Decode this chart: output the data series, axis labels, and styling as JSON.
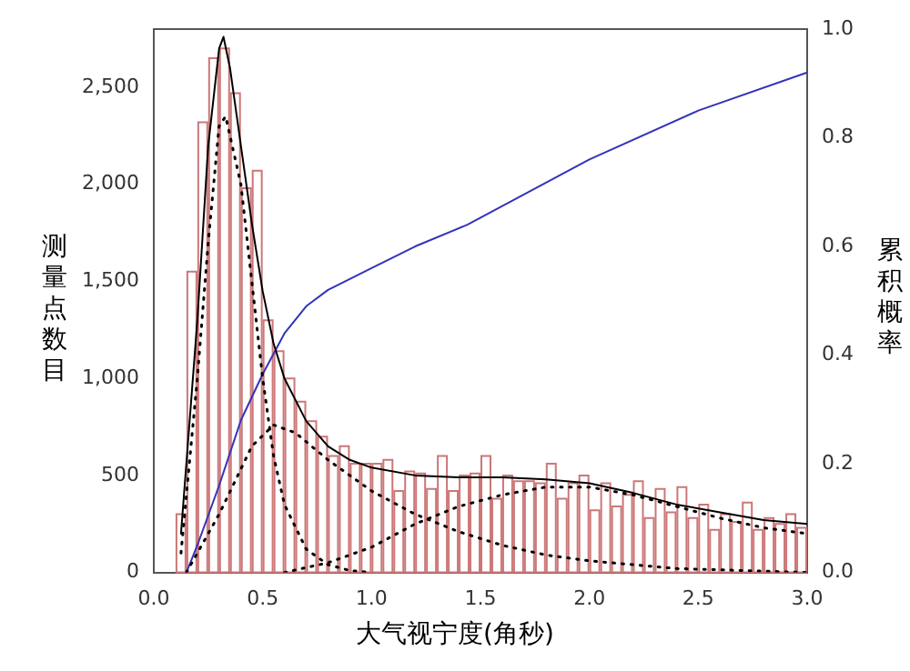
{
  "chart_data": {
    "type": "histogram",
    "xlabel": "大气视宁度(角秒)",
    "ylabel": "测量点数目",
    "y2label": "累积概率",
    "bins": [
      0.1,
      0.15,
      0.2,
      0.25,
      0.3,
      0.35,
      0.4,
      0.45,
      0.5,
      0.55,
      0.6,
      0.65,
      0.7,
      0.75,
      0.8,
      0.85,
      0.9,
      0.95,
      1.0,
      1.05,
      1.1,
      1.15,
      1.2,
      1.25,
      1.3,
      1.35,
      1.4,
      1.45,
      1.5,
      1.55,
      1.6,
      1.65,
      1.7,
      1.75,
      1.8,
      1.85,
      1.9,
      1.95,
      2.0,
      2.05,
      2.1,
      2.15,
      2.2,
      2.25,
      2.3,
      2.35,
      2.4,
      2.45,
      2.5,
      2.55,
      2.6,
      2.65,
      2.7,
      2.75,
      2.8,
      2.85,
      2.9,
      2.95,
      3.0
    ],
    "series": [
      {
        "color": "#cc7777",
        "values": [
          300,
          1550,
          2320,
          2650,
          2700,
          2470,
          1980,
          2070,
          1300,
          1140,
          1000,
          880,
          780,
          700,
          600,
          650,
          560,
          560,
          560,
          580,
          420,
          520,
          510,
          430,
          600,
          420,
          500,
          510,
          600,
          380,
          500,
          470,
          470,
          460,
          560,
          380,
          460,
          500,
          320,
          460,
          340,
          400,
          470,
          280,
          430,
          310,
          440,
          280,
          350,
          220,
          300,
          260,
          360,
          220,
          280,
          250,
          300,
          230
        ]
      },
      {
        "type": "line",
        "color": "#000000",
        "line_style": "solid",
        "x": [
          0.125,
          0.2,
          0.25,
          0.3,
          0.32,
          0.35,
          0.4,
          0.45,
          0.5,
          0.55,
          0.6,
          0.7,
          0.8,
          0.9,
          1.0,
          1.2,
          1.4,
          1.6,
          1.8,
          2.0,
          2.2,
          2.4,
          2.6,
          2.8,
          3.0
        ],
        "values": [
          200,
          1300,
          2200,
          2700,
          2760,
          2600,
          2200,
          1800,
          1450,
          1180,
          1000,
          780,
          650,
          580,
          540,
          500,
          490,
          490,
          480,
          460,
          410,
          350,
          310,
          270,
          250
        ]
      },
      {
        "type": "line",
        "color": "#000000",
        "line_style": "dotted",
        "x": [
          0.125,
          0.2,
          0.25,
          0.3,
          0.33,
          0.4,
          0.45,
          0.5,
          0.55,
          0.6,
          0.7,
          0.8,
          0.9,
          1.0
        ],
        "values": [
          100,
          1000,
          1700,
          2300,
          2350,
          2000,
          1500,
          1000,
          600,
          350,
          120,
          40,
          10,
          0
        ]
      },
      {
        "type": "line",
        "color": "#000000",
        "line_style": "dotted",
        "x": [
          0.15,
          0.3,
          0.45,
          0.55,
          0.65,
          0.8,
          1.0,
          1.2,
          1.4,
          1.6,
          1.8,
          2.0,
          2.4,
          3.0
        ],
        "values": [
          0,
          300,
          650,
          760,
          720,
          580,
          420,
          300,
          210,
          140,
          90,
          60,
          20,
          0
        ]
      },
      {
        "type": "line",
        "color": "#000000",
        "line_style": "dotted",
        "x": [
          0.6,
          0.8,
          1.0,
          1.2,
          1.4,
          1.6,
          1.8,
          2.0,
          2.2,
          2.4,
          2.6,
          2.8,
          3.0
        ],
        "values": [
          0,
          50,
          130,
          250,
          340,
          400,
          440,
          440,
          400,
          340,
          280,
          230,
          200
        ]
      },
      {
        "type": "line",
        "color": "#3333bb",
        "line_style": "solid",
        "axis": "y2",
        "x": [
          0.15,
          0.2,
          0.3,
          0.4,
          0.5,
          0.6,
          0.7,
          0.8,
          1.0,
          1.2,
          1.44,
          2.0,
          2.5,
          3.0
        ],
        "values": [
          0,
          0.05,
          0.16,
          0.28,
          0.365,
          0.44,
          0.49,
          0.52,
          0.56,
          0.6,
          0.64,
          0.76,
          0.85,
          0.92
        ]
      }
    ],
    "xlim": [
      0,
      3
    ],
    "xticks": [
      {
        "value": 0,
        "label": "0.0"
      },
      {
        "value": 0.5,
        "label": "0.5"
      },
      {
        "value": 1,
        "label": "1.0"
      },
      {
        "value": 1.5,
        "label": "1.5"
      },
      {
        "value": 2,
        "label": "2.0"
      },
      {
        "value": 2.5,
        "label": "2.5"
      },
      {
        "value": 3,
        "label": "3.0"
      }
    ],
    "ylim": [
      0,
      2800
    ],
    "yticks": [
      0,
      500,
      {
        "value": 1000,
        "label": "1,000"
      },
      {
        "value": 1500,
        "label": "1,500"
      },
      {
        "value": 2000,
        "label": "2,000"
      },
      {
        "value": 2500,
        "label": "2,500"
      }
    ],
    "y2lim": [
      0,
      1
    ],
    "y2ticks": [
      {
        "value": 0,
        "label": "0.0"
      },
      {
        "value": 0.2,
        "label": "0.2"
      },
      {
        "value": 0.4,
        "label": "0.4"
      },
      {
        "value": 0.6,
        "label": "0.6"
      },
      {
        "value": 0.8,
        "label": "0.8"
      },
      {
        "value": 1,
        "label": "1.0"
      }
    ],
    "grid": false,
    "legend": false
  }
}
